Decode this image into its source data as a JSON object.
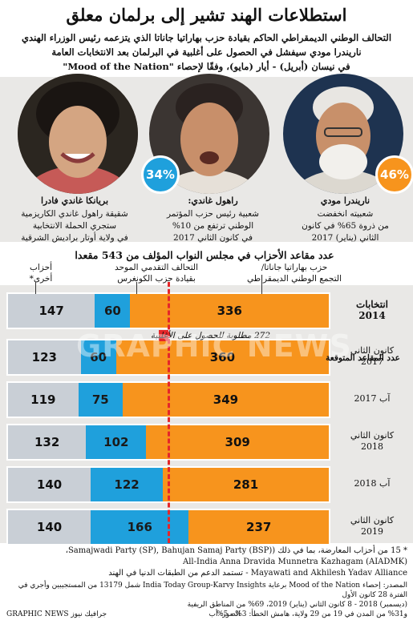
{
  "header": {
    "title": "استطلاعات الهند تشير إلى برلمان معلق",
    "lines": [
      "التحالف الوطني الديمقراطي الحاكم بقيادة حزب بهاراتيا جاناتا الذي يتزعمه رئيس الوزراء الهندي",
      "ناريندرا مودي سيفشل في الحصول على أغلبية في البرلمان بعد الانتخابات العامة",
      "في نيسان (أبريل) - أيار (مايو)، وفقًا لإحصاء \"Mood of the Nation\""
    ]
  },
  "people": [
    {
      "name": "ناريندرا مودي",
      "badge": "46%",
      "badge_color": "#f7941d",
      "desc": [
        "شعبيته انخفضت",
        "من ذروة 65% في كانون",
        "الثاني (يناير) 2017"
      ]
    },
    {
      "name": "راهول غاندي:",
      "badge": "34%",
      "badge_color": "#1fa0dc",
      "desc": [
        "شعبية رئيس حزب المؤتمر",
        "الوطني ترتفع من 10%",
        "في كانون الثاني 2017"
      ]
    },
    {
      "name": "بريانكا غاندي فادرا",
      "badge": "",
      "desc": [
        "شقيقة راهول غاندي الكاريزمية",
        "ستجري الحملة الانتخابية",
        "في ولاية أوتار براديش الشرقية"
      ]
    }
  ],
  "section_title": "عدد مقاعد الأحزاب في مجلس النواب المؤلف من 543 مقعدا",
  "legend": {
    "nda": [
      "حزب بهاراتيا جاناتا/",
      "التجمع الوطني الديمقراطي"
    ],
    "upa": [
      "التحالف التقدمي الموحد",
      "بقيادة حزب الكونغرس"
    ],
    "others": [
      "أحزاب",
      "أخرى*"
    ]
  },
  "majority_label": "272 مطلوبة للحصول على الأغلبية",
  "projected_label": "عدد المقاعد المتوقعة",
  "colors": {
    "nda": "#f7941d",
    "upa": "#1fa0dc",
    "others": "#c9cfd6",
    "majority": "#e52629",
    "band": "#e9e8e6"
  },
  "rows": [
    {
      "label": [
        "انتخابات",
        "2014"
      ],
      "bold": true
    },
    {
      "label": [
        "كانون الثاني",
        "2017"
      ],
      "bold": false
    },
    {
      "label": [
        "آب 2017"
      ],
      "bold": false
    },
    {
      "label": [
        "كانون الثاني",
        "2018"
      ],
      "bold": false
    },
    {
      "label": [
        "آب 2018"
      ],
      "bold": false
    },
    {
      "label": [
        "كانون الثاني",
        "2019"
      ],
      "bold": false
    }
  ],
  "chart_data": {
    "type": "bar",
    "orientation": "horizontal-stacked",
    "title": "عدد مقاعد الأحزاب في مجلس النواب المؤلف من 543 مقعدا",
    "categories": [
      "انتخابات 2014",
      "كانون الثاني 2017",
      "آب 2017",
      "كانون الثاني 2018",
      "آب 2018",
      "كانون الثاني 2019"
    ],
    "series": [
      {
        "name": "حزب بهاراتيا جاناتا/التجمع الوطني الديمقراطي",
        "values": [
          336,
          360,
          349,
          309,
          281,
          237
        ]
      },
      {
        "name": "التحالف التقدمي الموحد بقيادة حزب الكونغرس",
        "values": [
          60,
          60,
          75,
          102,
          122,
          166
        ]
      },
      {
        "name": "أحزاب أخرى*",
        "values": [
          147,
          123,
          119,
          132,
          140,
          140
        ]
      }
    ],
    "total": 543,
    "majority_line": 272
  },
  "footnotes": [
    "* 15 من أحزاب المعارضة، بما في ذلك (Samajwadi Party (SP), Bahujan Samaj Party (BSP)،",
    "(All-India Anna Dravida Munnetra Kazhagam (AIADMK",
    "Mayawati and Akhilesh Yadav Alliance - تستمد الدعم من الطبقات الدنيا في الهند",
    "المصدر: إحصاء Mood of the Nation برعاية India Today Group-Karvy Insights شمل 13179 من المستجيبين وأجري في الفترة 28 كانون الأول",
    "(ديسمبر) 2018 - 8 كانون الثاني (يناير) 2019، 69% من المناطق الريفية",
    "و31% من المدن في 19 من 29 ولاية، هامش الخطأ: 3% - 5%"
  ],
  "credit_left": "GRAPHIC NEWS جرافيك نيوز",
  "credit_right": "الصور: أب",
  "watermark": "GRAPHIC NEWS"
}
